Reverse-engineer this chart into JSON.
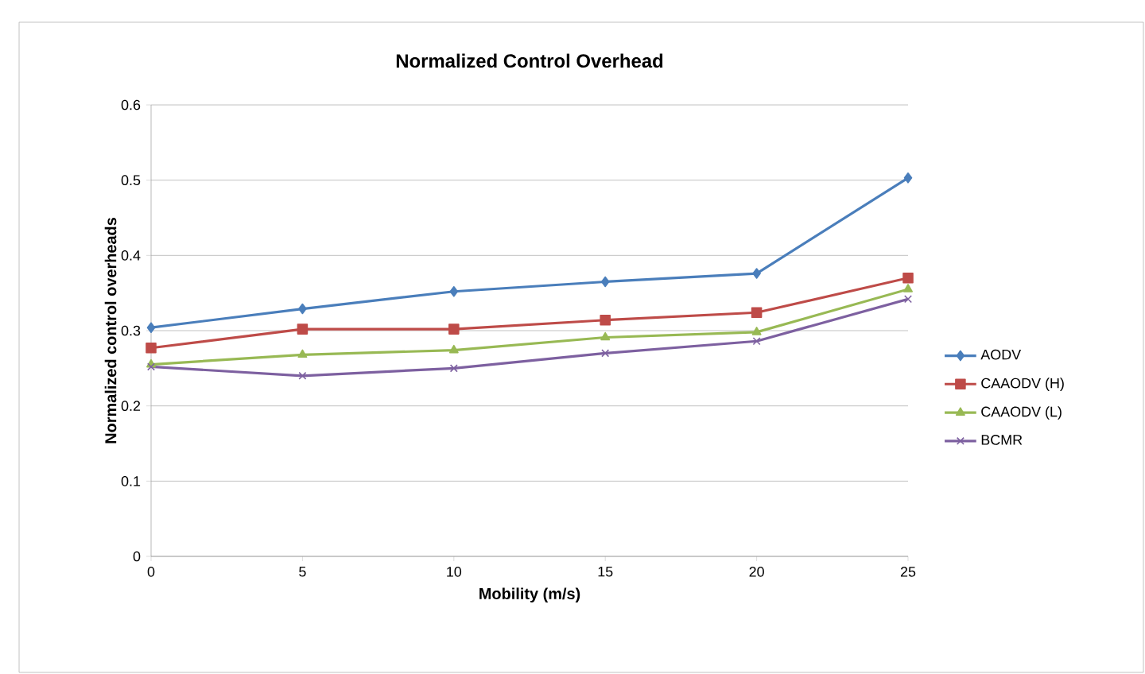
{
  "chart_data": {
    "type": "line",
    "title": "Normalized Control Overhead",
    "xlabel": "Mobility (m/s)",
    "ylabel": "Normalized control overheads",
    "categories": [
      "0",
      "5",
      "10",
      "15",
      "20",
      "25"
    ],
    "series": [
      {
        "name": "AODV",
        "color": "#4a7ebb",
        "marker": "diamond",
        "values": [
          0.304,
          0.329,
          0.352,
          0.365,
          0.376,
          0.503
        ]
      },
      {
        "name": "CAAODV (H)",
        "color": "#be4b48",
        "marker": "square",
        "values": [
          0.277,
          0.302,
          0.302,
          0.314,
          0.324,
          0.37
        ]
      },
      {
        "name": "CAAODV (L)",
        "color": "#98b954",
        "marker": "triangle",
        "values": [
          0.255,
          0.268,
          0.274,
          0.291,
          0.298,
          0.355
        ]
      },
      {
        "name": "BCMR",
        "color": "#7d60a0",
        "marker": "cross",
        "values": [
          0.252,
          0.24,
          0.25,
          0.27,
          0.286,
          0.342
        ]
      }
    ],
    "ylim": [
      0,
      0.6
    ],
    "yticks": [
      0,
      0.1,
      0.2,
      0.3,
      0.4,
      0.5,
      0.6
    ],
    "grid": "y",
    "legend": "right"
  }
}
